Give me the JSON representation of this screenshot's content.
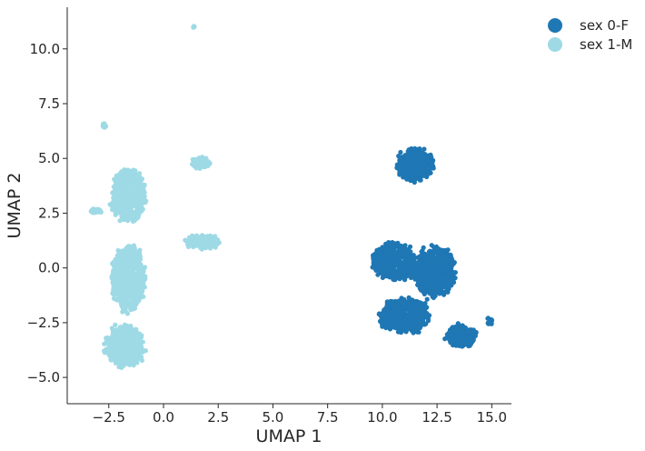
{
  "chart_data": {
    "type": "scatter",
    "title": "",
    "xlabel": "UMAP 1",
    "ylabel": "UMAP 2",
    "xlim": [
      -4.4,
      15.9
    ],
    "ylim": [
      -6.2,
      11.9
    ],
    "xticks": [
      -2.5,
      0.0,
      2.5,
      5.0,
      7.5,
      10.0,
      12.5,
      15.0
    ],
    "xtick_labels": [
      "−2.5",
      "0.0",
      "2.5",
      "5.0",
      "7.5",
      "10.0",
      "12.5",
      "15.0"
    ],
    "yticks": [
      -5.0,
      -2.5,
      0.0,
      2.5,
      5.0,
      7.5,
      10.0
    ],
    "ytick_labels": [
      "−5.0",
      "−2.5",
      "0.0",
      "2.5",
      "5.0",
      "7.5",
      "10.0"
    ],
    "grid": false,
    "legend_position": "outside-top-right",
    "series": [
      {
        "name": "sex 0-F",
        "color": "#1f77b4",
        "clusters": [
          {
            "center": [
              11.5,
              4.7
            ],
            "spread": [
              0.95,
              0.9
            ],
            "n": 320
          },
          {
            "center": [
              10.5,
              0.3
            ],
            "spread": [
              1.1,
              0.95
            ],
            "n": 480
          },
          {
            "center": [
              12.4,
              -0.2
            ],
            "spread": [
              1.1,
              1.3
            ],
            "n": 520
          },
          {
            "center": [
              11.0,
              -2.2
            ],
            "spread": [
              1.3,
              0.9
            ],
            "n": 480
          },
          {
            "center": [
              13.6,
              -3.1
            ],
            "spread": [
              0.8,
              0.55
            ],
            "n": 240
          },
          {
            "center": [
              14.9,
              -2.4
            ],
            "spread": [
              0.15,
              0.2
            ],
            "n": 15
          }
        ]
      },
      {
        "name": "sex 1-M",
        "color": "#9edae5",
        "clusters": [
          {
            "center": [
              -1.6,
              3.3
            ],
            "spread": [
              0.9,
              1.4
            ],
            "n": 500
          },
          {
            "center": [
              -1.6,
              -0.5
            ],
            "spread": [
              0.85,
              1.7
            ],
            "n": 650
          },
          {
            "center": [
              -1.8,
              -3.6
            ],
            "spread": [
              1.0,
              1.1
            ],
            "n": 500
          },
          {
            "center": [
              -3.1,
              2.6
            ],
            "spread": [
              0.3,
              0.12
            ],
            "n": 40
          },
          {
            "center": [
              1.7,
              4.8
            ],
            "spread": [
              0.5,
              0.3
            ],
            "n": 70
          },
          {
            "center": [
              1.8,
              1.2
            ],
            "spread": [
              0.9,
              0.4
            ],
            "n": 140
          },
          {
            "center": [
              -2.7,
              6.5
            ],
            "spread": [
              0.1,
              0.15
            ],
            "n": 12
          },
          {
            "center": [
              1.4,
              11.0
            ],
            "spread": [
              0.05,
              0.05
            ],
            "n": 4
          }
        ]
      }
    ]
  }
}
